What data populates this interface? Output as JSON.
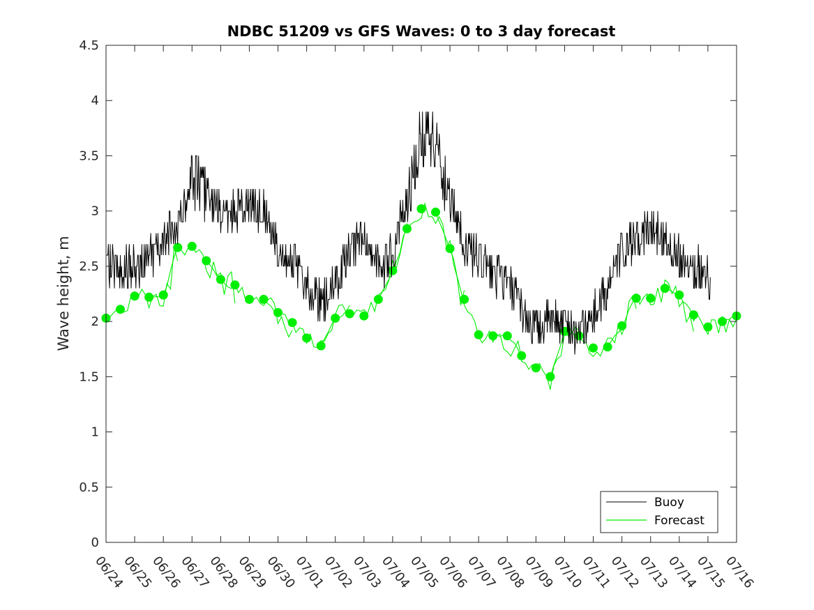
{
  "chart_data": {
    "type": "line",
    "title": "NDBC 51209 vs GFS Waves: 0 to 3 day forecast",
    "xlabel": "",
    "ylabel": "Wave height, m",
    "xlim": [
      "06/24",
      "07/16"
    ],
    "ylim": [
      0,
      4.5
    ],
    "yticks": [
      "0",
      "0.5",
      "1",
      "1.5",
      "2",
      "2.5",
      "3",
      "3.5",
      "4",
      "4.5"
    ],
    "xticks": [
      "06/24",
      "06/25",
      "06/26",
      "06/27",
      "06/28",
      "06/29",
      "06/30",
      "07/01",
      "07/02",
      "07/03",
      "07/04",
      "07/05",
      "07/06",
      "07/07",
      "07/08",
      "07/09",
      "07/10",
      "07/11",
      "07/12",
      "07/13",
      "07/14",
      "07/15",
      "07/16"
    ],
    "grid": false,
    "legend_position": "bottom-right",
    "legend": [
      "Buoy",
      "Forecast"
    ],
    "colors": {
      "buoy": "#000000",
      "forecast": "#00ee00"
    },
    "series": [
      {
        "name": "Buoy",
        "x_day_offset": [
          0,
          0.5,
          1,
          1.5,
          2,
          2.5,
          3,
          3.5,
          4,
          4.5,
          5,
          5.5,
          6,
          6.5,
          7,
          7.5,
          8,
          8.5,
          9,
          9.5,
          10,
          10.5,
          11,
          11.5,
          12,
          12.5,
          13,
          13.5,
          14,
          14.5,
          15,
          15.5,
          16,
          16.5,
          17,
          17.5,
          18,
          18.5,
          19,
          19.5,
          20,
          20.5,
          21,
          21.1
        ],
        "values": [
          2.5,
          2.45,
          2.5,
          2.55,
          2.7,
          2.9,
          3.3,
          3.2,
          2.95,
          3.0,
          3.05,
          3.0,
          2.7,
          2.55,
          2.3,
          2.15,
          2.3,
          2.65,
          2.8,
          2.5,
          2.6,
          3.1,
          3.7,
          3.65,
          3.1,
          2.7,
          2.55,
          2.45,
          2.35,
          2.1,
          1.95,
          2.0,
          2.0,
          1.9,
          2.05,
          2.3,
          2.65,
          2.7,
          2.85,
          2.75,
          2.6,
          2.5,
          2.4,
          2.35
        ]
      },
      {
        "name": "Forecast",
        "x_day_offset": [
          0,
          0.5,
          1,
          1.5,
          2,
          2.5,
          3,
          3.5,
          4,
          4.5,
          5,
          5.5,
          6,
          6.5,
          7,
          7.5,
          8,
          8.5,
          9,
          9.5,
          10,
          10.5,
          11,
          11.5,
          12,
          12.5,
          13,
          13.5,
          14,
          14.5,
          15,
          15.5,
          16,
          16.5,
          17,
          17.5,
          18,
          18.5,
          19,
          19.5,
          20,
          20.5,
          21,
          21.5,
          22
        ],
        "values": [
          2.03,
          2.11,
          2.23,
          2.22,
          2.24,
          2.67,
          2.68,
          2.55,
          2.38,
          2.33,
          2.2,
          2.2,
          2.08,
          1.99,
          1.85,
          1.78,
          2.03,
          2.07,
          2.05,
          2.2,
          2.46,
          2.84,
          3.02,
          2.99,
          2.66,
          2.2,
          1.88,
          1.87,
          1.87,
          1.69,
          1.58,
          1.5,
          1.91,
          1.87,
          1.76,
          1.77,
          1.96,
          2.21,
          2.21,
          2.3,
          2.24,
          2.06,
          1.95,
          2.0,
          2.05
        ]
      }
    ]
  }
}
